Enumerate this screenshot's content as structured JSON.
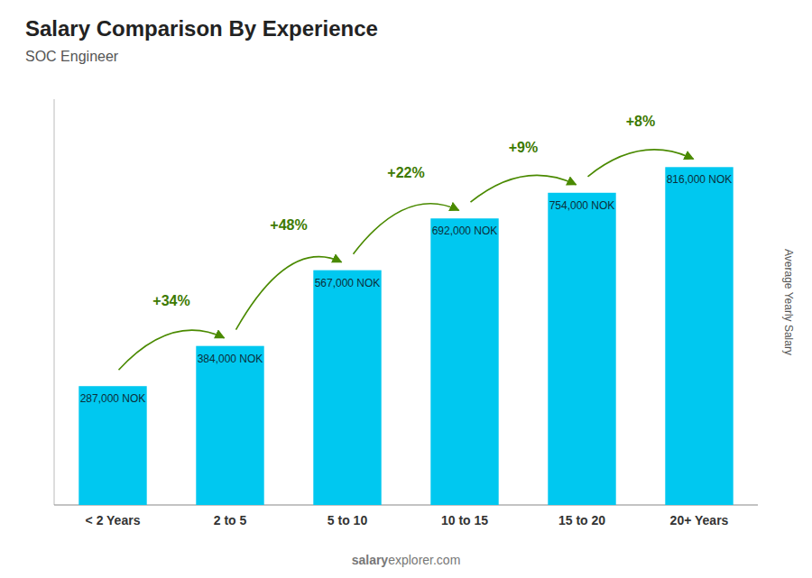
{
  "chart_data": {
    "type": "bar",
    "title": "Salary Comparison By Experience",
    "subtitle": "SOC Engineer",
    "ylabel": "Average Yearly Salary",
    "watermark": {
      "bold": "salary",
      "normal": "explorer.com"
    },
    "categories": [
      "< 2 Years",
      "2 to 5",
      "5 to 10",
      "10 to 15",
      "15 to 20",
      "20+ Years"
    ],
    "values": [
      287000,
      384000,
      567000,
      692000,
      754000,
      816000
    ],
    "value_labels": [
      "287,000 NOK",
      "384,000 NOK",
      "567,000 NOK",
      "692,000 NOK",
      "754,000 NOK",
      "816,000 NOK"
    ],
    "annotations": [
      null,
      "+34%",
      "+48%",
      "+22%",
      "+9%",
      "+8%"
    ],
    "color": "#00c8f0",
    "ylim": [
      0,
      980000
    ],
    "data_labels": true,
    "tick_labels": "x",
    "grid": false
  }
}
